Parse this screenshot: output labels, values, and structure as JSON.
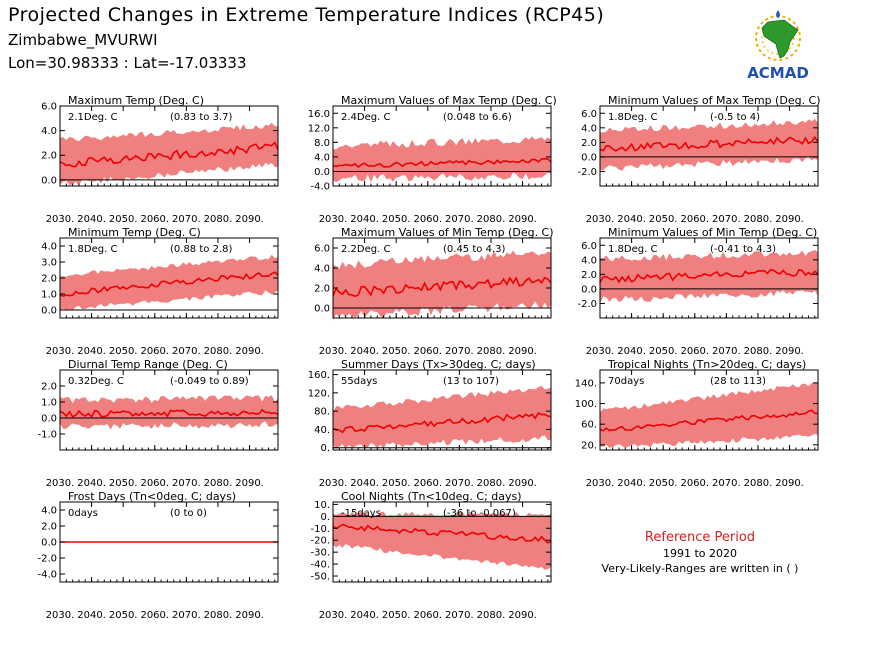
{
  "header": {
    "title": "Projected Changes in Extreme Temperature Indices (RCP45)",
    "station": "Zimbabwe_MVURWI",
    "coords": "Lon=30.98333 : Lat=-17.03333",
    "logo_text": "ACMAD"
  },
  "reference": {
    "title": "Reference Period",
    "years": "1991 to 2020",
    "note": "Very-Likely-Ranges are written in ( )"
  },
  "colors": {
    "band": "#f08080",
    "line": "#ee0000",
    "zero_line": "#000000",
    "ref_title": "#d62020"
  },
  "x_ticks": [
    "2030.",
    "2040.",
    "2050.",
    "2060.",
    "2070.",
    "2080.",
    "2090."
  ],
  "chart_data": [
    {
      "type": "line",
      "title": "Maximum Temp (Deg. C)",
      "stat_main": "2.1Deg. C",
      "stat_range": "(0.83 to 3.7)",
      "x": [
        2030,
        2099
      ],
      "ylim": [
        -0.5,
        6.0
      ],
      "yticks": [
        0,
        2,
        4,
        6
      ],
      "ytick_labels": [
        "0.0",
        "2.0",
        "4.0",
        "6.0"
      ],
      "zero_line": true,
      "mean_start": 1.3,
      "mean_end": 2.7,
      "band_start": [
        -0.1,
        3.0
      ],
      "band_end": [
        1.5,
        4.2
      ],
      "noise": 0.35,
      "band_noise": 0.5
    },
    {
      "type": "line",
      "title": "Maximum Values of Max Temp (Deg. C)",
      "stat_main": "2.4Deg. C",
      "stat_range": "(0.048 to 6.6)",
      "x": [
        2030,
        2099
      ],
      "ylim": [
        -4.0,
        18.0
      ],
      "yticks": [
        -4,
        0,
        4,
        8,
        12,
        16
      ],
      "ytick_labels": [
        "-4.0",
        "0.0",
        "4.0",
        "8.0",
        "12.0",
        "16.0"
      ],
      "zero_line": true,
      "mean_start": 1.5,
      "mean_end": 3.0,
      "band_start": [
        -1.0,
        6.0
      ],
      "band_end": [
        0.0,
        8.0
      ],
      "noise": 0.6,
      "band_noise": 2.2
    },
    {
      "type": "line",
      "title": "Minimum Values of Max Temp (Deg. C)",
      "stat_main": "1.8Deg. C",
      "stat_range": "(-0.5 to 4)",
      "x": [
        2030,
        2099
      ],
      "ylim": [
        -4.0,
        7.0
      ],
      "yticks": [
        -2,
        0,
        2,
        4,
        6
      ],
      "ytick_labels": [
        "-2.0",
        "0.0",
        "2.0",
        "4.0",
        "6.0"
      ],
      "zero_line": true,
      "mean_start": 1.1,
      "mean_end": 2.4,
      "band_start": [
        -1.2,
        3.2
      ],
      "band_end": [
        0.2,
        4.4
      ],
      "noise": 0.5,
      "band_noise": 0.9
    },
    {
      "type": "line",
      "title": "Minimum Temp (Deg. C)",
      "stat_main": "1.8Deg. C",
      "stat_range": "(0.88 to 2.8)",
      "x": [
        2030,
        2099
      ],
      "ylim": [
        -0.5,
        4.5
      ],
      "yticks": [
        0,
        1,
        2,
        3,
        4
      ],
      "ytick_labels": [
        "0.0",
        "1.0",
        "2.0",
        "3.0",
        "4.0"
      ],
      "zero_line": true,
      "mean_start": 1.0,
      "mean_end": 2.3,
      "band_start": [
        0.2,
        2.0
      ],
      "band_end": [
        1.3,
        3.2
      ],
      "noise": 0.18,
      "band_noise": 0.3
    },
    {
      "type": "line",
      "title": "Maximum Values of Min Temp (Deg. C)",
      "stat_main": "2.2Deg. C",
      "stat_range": "(0.45 to 4.3)",
      "x": [
        2030,
        2099
      ],
      "ylim": [
        -1.0,
        7.0
      ],
      "yticks": [
        0,
        2,
        4,
        6
      ],
      "ytick_labels": [
        "0.0",
        "2.0",
        "4.0",
        "6.0"
      ],
      "zero_line": true,
      "mean_start": 1.5,
      "mean_end": 2.8,
      "band_start": [
        -0.4,
        3.8
      ],
      "band_end": [
        0.8,
        5.2
      ],
      "noise": 0.45,
      "band_noise": 0.9
    },
    {
      "type": "line",
      "title": "Minimum Values of Min Temp (Deg. C)",
      "stat_main": "1.8Deg. C",
      "stat_range": "(-0.41 to 4.3)",
      "x": [
        2030,
        2099
      ],
      "ylim": [
        -4.0,
        7.0
      ],
      "yticks": [
        -2,
        0,
        2,
        4,
        6
      ],
      "ytick_labels": [
        "-2.0",
        "0.0",
        "2.0",
        "4.0",
        "6.0"
      ],
      "zero_line": true,
      "mean_start": 1.3,
      "mean_end": 2.4,
      "band_start": [
        -1.0,
        3.6
      ],
      "band_end": [
        0.0,
        4.6
      ],
      "noise": 0.5,
      "band_noise": 1.0
    },
    {
      "type": "line",
      "title": "Diurnal Temp Range (Deg. C)",
      "stat_main": "0.32Deg. C",
      "stat_range": "(-0.049 to 0.89)",
      "x": [
        2030,
        2099
      ],
      "ylim": [
        -2.0,
        3.0
      ],
      "yticks": [
        -1,
        0,
        1,
        2
      ],
      "ytick_labels": [
        "-1.0",
        "0.0",
        "1.0",
        "2.0"
      ],
      "zero_line": true,
      "mean_start": 0.25,
      "mean_end": 0.35,
      "band_start": [
        -0.3,
        0.9
      ],
      "band_end": [
        -0.2,
        1.0
      ],
      "noise": 0.2,
      "band_noise": 0.45
    },
    {
      "type": "line",
      "title": "Summer Days (Tx>30deg. C; days)",
      "stat_main": "55days",
      "stat_range": "(13 to 107)",
      "x": [
        2030,
        2099
      ],
      "ylim": [
        -5,
        170
      ],
      "yticks": [
        0,
        40,
        80,
        120,
        160
      ],
      "ytick_labels": [
        "0.",
        "40.",
        "80.",
        "120.",
        "160."
      ],
      "zero_line": true,
      "mean_start": 38,
      "mean_end": 72,
      "band_start": [
        8,
        78
      ],
      "band_end": [
        28,
        125
      ],
      "noise": 7,
      "band_noise": 14
    },
    {
      "type": "line",
      "title": "Tropical Nights (Tn>20deg. C; days)",
      "stat_main": "70days",
      "stat_range": "(28 to 113)",
      "x": [
        2030,
        2099
      ],
      "ylim": [
        10,
        165
      ],
      "yticks": [
        20,
        60,
        100,
        140
      ],
      "ytick_labels": [
        "20.",
        "60.",
        "100.",
        "140."
      ],
      "zero_line": false,
      "mean_start": 48,
      "mean_end": 84,
      "band_start": [
        20,
        80
      ],
      "band_end": [
        42,
        135
      ],
      "noise": 5,
      "band_noise": 10
    },
    {
      "type": "line",
      "title": "Frost Days (Tn<0deg. C; days)",
      "stat_main": "0days",
      "stat_range": "(0 to 0)",
      "x": [
        2030,
        2099
      ],
      "ylim": [
        -5.0,
        5.0
      ],
      "yticks": [
        -4,
        -2,
        0,
        2,
        4
      ],
      "ytick_labels": [
        "-4.0",
        "-2.0",
        "0.0",
        "2.0",
        "4.0"
      ],
      "zero_line": true,
      "mean_start": 0,
      "mean_end": 0,
      "band_start": [
        0,
        0
      ],
      "band_end": [
        0,
        0
      ],
      "noise": 0,
      "band_noise": 0
    },
    {
      "type": "line",
      "title": "Cool Nights (Tn<10deg. C; days)",
      "stat_main": "-15days",
      "stat_range": "(-36 to -0.067)",
      "x": [
        2030,
        2099
      ],
      "ylim": [
        -55,
        12
      ],
      "yticks": [
        -50,
        -40,
        -30,
        -20,
        -10,
        0,
        10
      ],
      "ytick_labels": [
        "-50.",
        "-40.",
        "-30.",
        "-20.",
        "-10.",
        "0.",
        "10."
      ],
      "zero_line": true,
      "mean_start": -8,
      "mean_end": -20,
      "band_start": [
        -22,
        0
      ],
      "band_end": [
        -42,
        0
      ],
      "noise": 2.5,
      "band_noise": 4
    }
  ]
}
